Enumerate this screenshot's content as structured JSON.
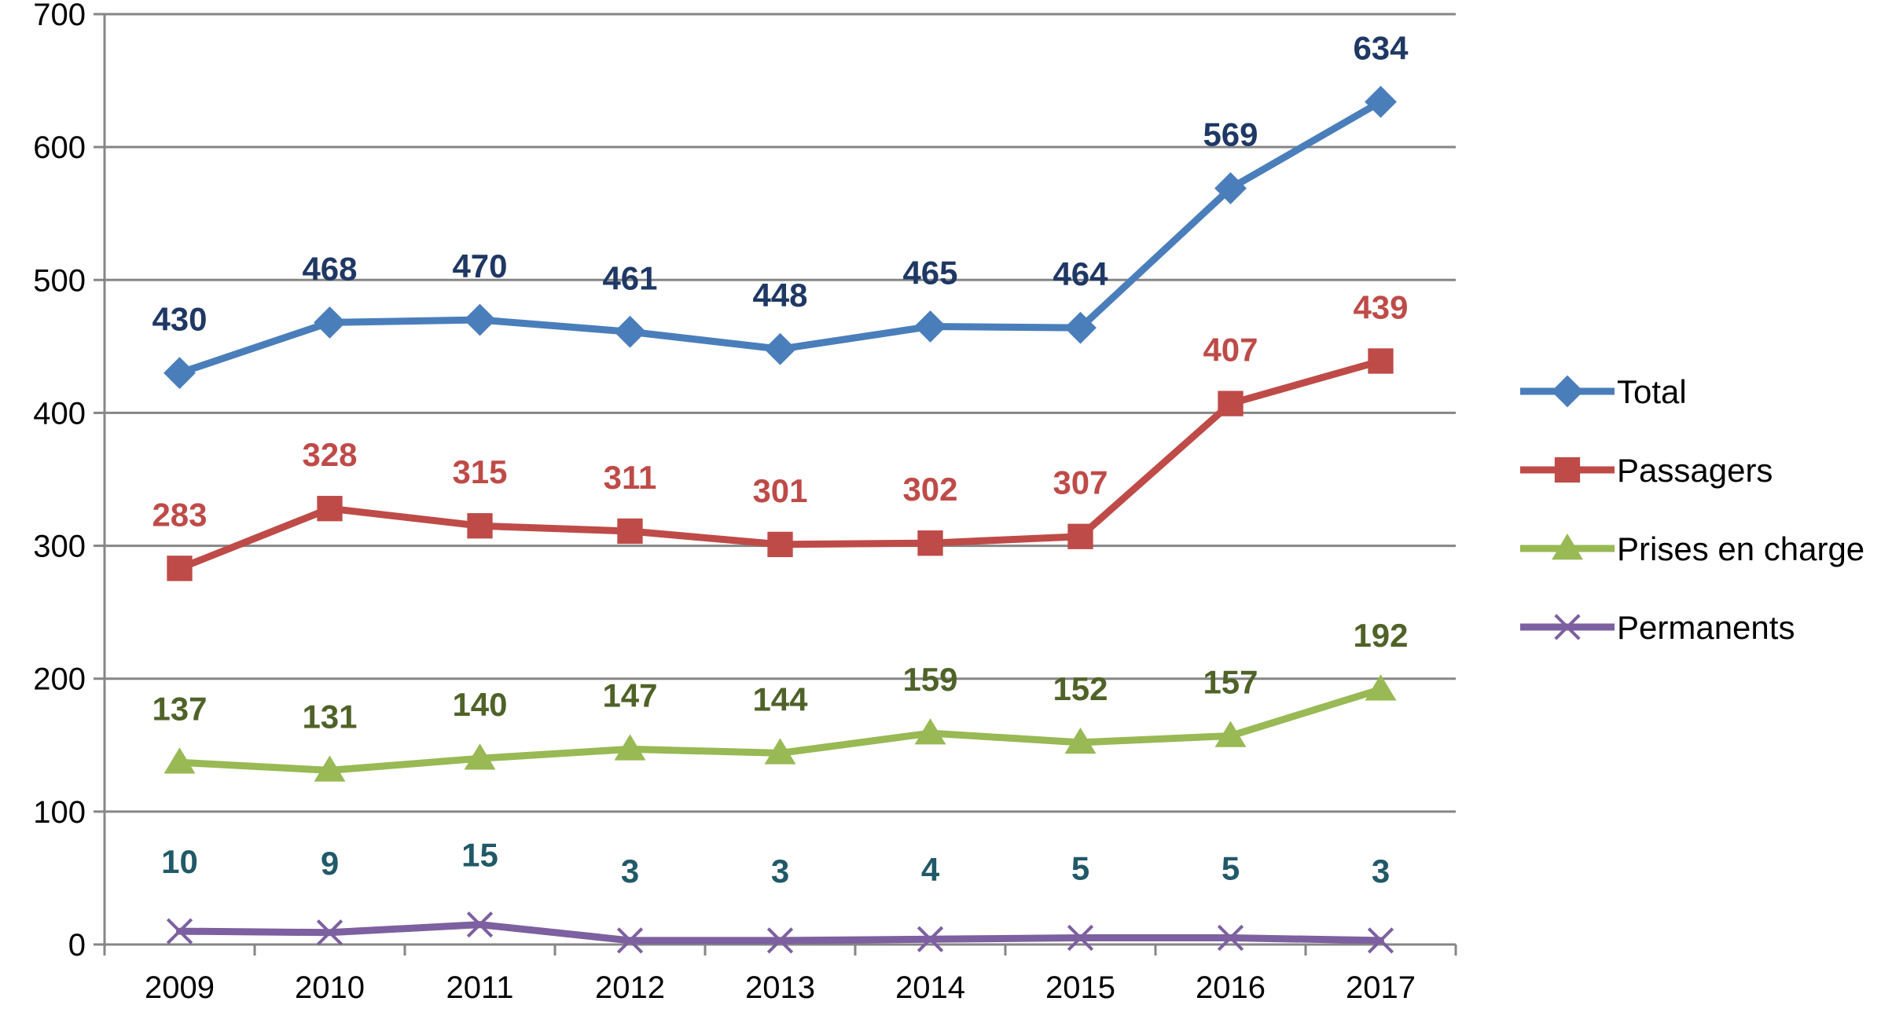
{
  "chart_data": {
    "type": "line",
    "categories": [
      "2009",
      "2010",
      "2011",
      "2012",
      "2013",
      "2014",
      "2015",
      "2016",
      "2017"
    ],
    "ylim": [
      0,
      700
    ],
    "yticks": [
      0,
      100,
      200,
      300,
      400,
      500,
      600,
      700
    ],
    "grid": true,
    "legend_position": "right",
    "series": [
      {
        "name": "Total",
        "values": [
          430,
          468,
          470,
          461,
          448,
          465,
          464,
          569,
          634
        ],
        "color": "#4a7ebb",
        "label_color": "#1f3864",
        "marker": "diamond"
      },
      {
        "name": "Passagers",
        "values": [
          283,
          328,
          315,
          311,
          301,
          302,
          307,
          407,
          439
        ],
        "color": "#be4b48",
        "label_color": "#be4b48",
        "marker": "square"
      },
      {
        "name": "Prises en charge",
        "values": [
          137,
          131,
          140,
          147,
          144,
          159,
          152,
          157,
          192
        ],
        "color": "#98b954",
        "label_color": "#4f6228",
        "marker": "triangle"
      },
      {
        "name": "Permanents",
        "values": [
          10,
          9,
          15,
          3,
          3,
          4,
          5,
          5,
          3
        ],
        "color": "#7d60a0",
        "label_color": "#215968",
        "marker": "x"
      }
    ]
  }
}
